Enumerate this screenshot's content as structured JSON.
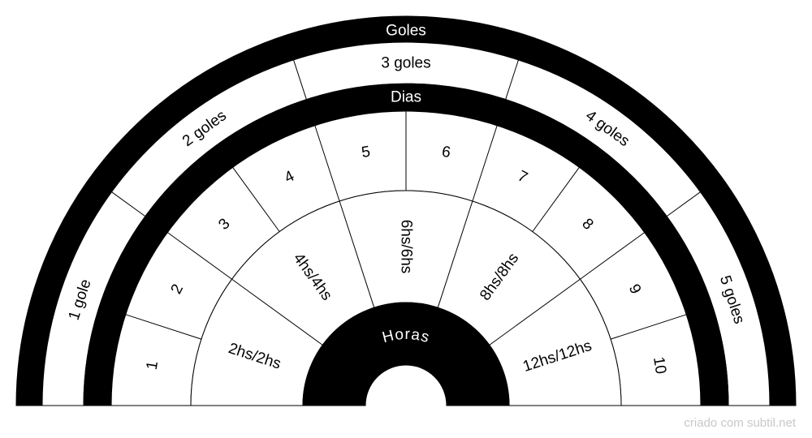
{
  "rings": {
    "goles": {
      "title": "Goles",
      "segments": [
        "1 gole",
        "2 goles",
        "3 goles",
        "4 goles",
        "5 goles"
      ]
    },
    "dias": {
      "title": "Dias",
      "segments": [
        "1",
        "2",
        "3",
        "4",
        "5",
        "6",
        "7",
        "8",
        "9",
        "10"
      ]
    },
    "horas": {
      "title": "Horas",
      "segments": [
        "2hs/2hs",
        "4hs/4hs",
        "6hs/6hs",
        "8hs/8hs",
        "12hs/12hs"
      ]
    }
  },
  "colors": {
    "band": "#000000",
    "segment": "#ffffff",
    "line": "#000000",
    "footer": "#c8c8c8"
  },
  "footer": {
    "text": "criado com subtil.net"
  }
}
